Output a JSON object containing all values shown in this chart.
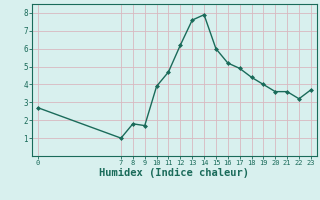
{
  "x": [
    0,
    7,
    8,
    9,
    10,
    11,
    12,
    13,
    14,
    15,
    16,
    17,
    18,
    19,
    20,
    21,
    22,
    23
  ],
  "y": [
    2.7,
    1.0,
    1.8,
    1.7,
    3.9,
    4.7,
    6.2,
    7.6,
    7.9,
    6.0,
    5.2,
    4.9,
    4.4,
    4.0,
    3.6,
    3.6,
    3.2,
    3.7
  ],
  "line_color": "#1a6b5a",
  "marker_color": "#1a6b5a",
  "bg_color": "#d8f0ee",
  "grid_color": "#d8b8c0",
  "xlabel": "Humidex (Indice chaleur)",
  "xlabel_fontsize": 7.5,
  "xlabel_fontweight": "bold",
  "xlabel_color": "#1a6b5a",
  "tick_color": "#1a6b5a",
  "spine_color": "#1a6b5a",
  "ylim": [
    0,
    8.5
  ],
  "xlim": [
    -0.5,
    23.5
  ],
  "yticks": [
    1,
    2,
    3,
    4,
    5,
    6,
    7,
    8
  ],
  "xticks": [
    0,
    7,
    8,
    9,
    10,
    11,
    12,
    13,
    14,
    15,
    16,
    17,
    18,
    19,
    20,
    21,
    22,
    23
  ]
}
